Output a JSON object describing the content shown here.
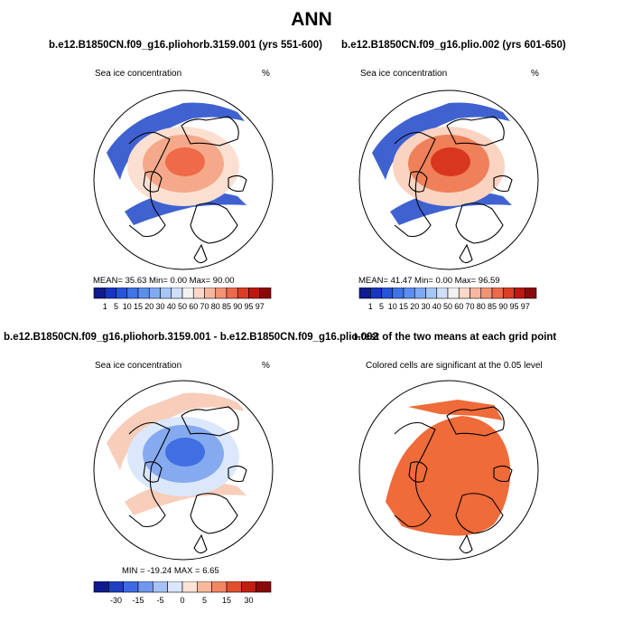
{
  "main_title": "ANN",
  "chart_data": [
    {
      "type": "heatmap",
      "title": "b.e12.B1850CN.f09_g16.pliohorb.3159.001 (yrs 551-600)",
      "variable_label": "Sea ice concentration",
      "units_label": "%",
      "stats_text": "MEAN=   35.63   Min=    0.00   Max=   90.00",
      "colorbar": {
        "labels": [
          "1",
          "5",
          "10",
          "15",
          "20",
          "30",
          "40",
          "50",
          "60",
          "70",
          "80",
          "85",
          "90",
          "95",
          "97"
        ],
        "colors": [
          "#0d1b8f",
          "#1736c1",
          "#2654db",
          "#3e74e6",
          "#5a8ff0",
          "#7eaaf3",
          "#a6c6f7",
          "#cfdff9",
          "#f2f2f2",
          "#fbd8c8",
          "#f7b79e",
          "#f39375",
          "#ec6a4b",
          "#dc3d24",
          "#bd1712",
          "#8a0a0a"
        ]
      },
      "map_fill": {
        "center": "#ee6a48",
        "mid": "#f5a98a",
        "edge": "#fbe0d2",
        "band": "#1e46c8"
      }
    },
    {
      "type": "heatmap",
      "title": "b.e12.B1850CN.f09_g16.plio.002 (yrs 601-650)",
      "variable_label": "Sea ice concentration",
      "units_label": "%",
      "stats_text": "MEAN=   41.47   Min=    0.00   Max=   96.59",
      "colorbar": {
        "labels": [
          "1",
          "5",
          "10",
          "15",
          "20",
          "30",
          "40",
          "50",
          "60",
          "70",
          "80",
          "85",
          "90",
          "95",
          "97"
        ],
        "colors": [
          "#0d1b8f",
          "#1736c1",
          "#2654db",
          "#3e74e6",
          "#5a8ff0",
          "#7eaaf3",
          "#a6c6f7",
          "#cfdff9",
          "#f2f2f2",
          "#fbd8c8",
          "#f7b79e",
          "#f39375",
          "#ec6a4b",
          "#dc3d24",
          "#bd1712",
          "#8a0a0a"
        ]
      },
      "map_fill": {
        "center": "#d8361f",
        "mid": "#f08059",
        "edge": "#fbd3c1",
        "band": "#1e46c8"
      }
    },
    {
      "type": "heatmap",
      "title": "b.e12.B1850CN.f09_g16.pliohorb.3159.001 - b.e12.B1850CN.f09_g16.plio.002",
      "variable_label": "Sea ice concentration",
      "units_label": "%",
      "stats_text": "MIN =  -19.24   MAX =     6.65",
      "colorbar": {
        "labels": [
          "-30",
          "-15",
          "-5",
          "0",
          "5",
          "15",
          "30"
        ],
        "colors": [
          "#0d1b8f",
          "#1f3fc0",
          "#3d6ae0",
          "#6f98ee",
          "#a7c3f5",
          "#d9e6fb",
          "#fde2d6",
          "#f8b79c",
          "#f18765",
          "#e0502f",
          "#c01f14",
          "#8a0a0a"
        ]
      },
      "map_fill": {
        "center": "#3f6fe2",
        "mid": "#86aaf0",
        "edge": "#dbe7fb",
        "band": "#f7c4ae"
      }
    },
    {
      "type": "heatmap",
      "title": "t-test of the two means at each grid point",
      "variable_label": "Colored cells are significant at the 0.05 level",
      "units_label": "",
      "stats_text": "",
      "colorbar": {
        "labels": [],
        "colors": []
      },
      "map_fill": {
        "center": "#ef6b3a",
        "mid": "#ef6b3a",
        "edge": "#ef6b3a",
        "band": "#ef6b3a"
      }
    }
  ]
}
